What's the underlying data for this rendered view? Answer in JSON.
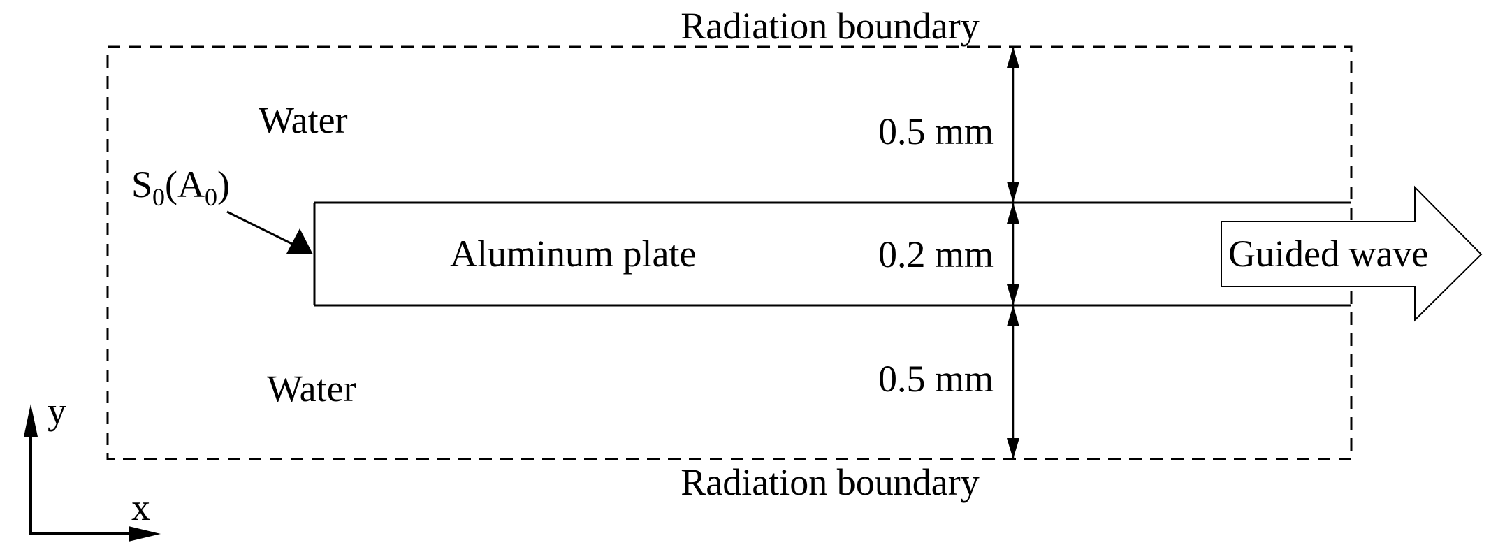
{
  "labels": {
    "radiation_top": "Radiation boundary",
    "radiation_bottom": "Radiation boundary",
    "water_top": "Water",
    "water_bottom": "Water",
    "plate": "Aluminum plate",
    "guided_wave": "Guided wave",
    "source_main_1": "S",
    "source_sub_1": "0",
    "source_main_2": "(A",
    "source_sub_2": "0",
    "source_close": ")",
    "dim_top": "0.5 mm",
    "dim_middle": "0.2 mm",
    "dim_bottom": "0.5 mm",
    "axis_y": "y",
    "axis_x": "x"
  },
  "colors": {
    "ink": "#000000",
    "background": "#ffffff"
  }
}
